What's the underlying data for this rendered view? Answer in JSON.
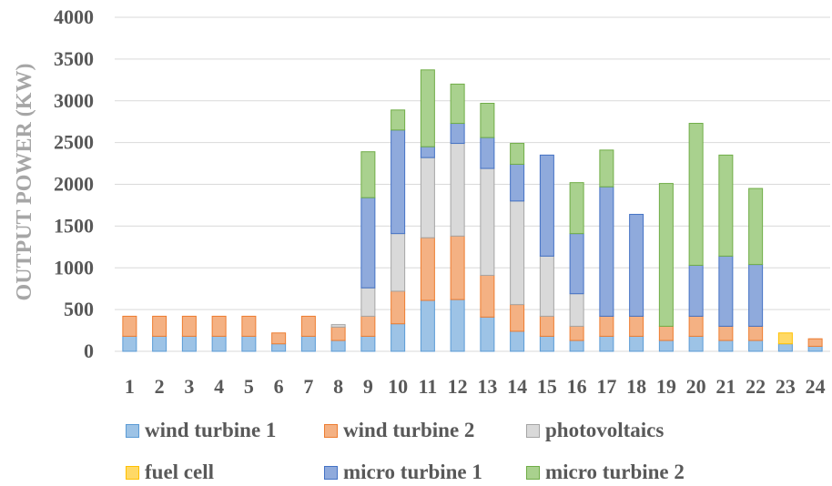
{
  "chart_data": {
    "type": "bar",
    "stacked": true,
    "title": "",
    "xlabel": "",
    "ylabel": "OUTPUT POWER (KW)",
    "ylim": [
      0,
      4000
    ],
    "yticks": [
      "0",
      "500",
      "1000",
      "1500",
      "2000",
      "2500",
      "3000",
      "3500",
      "4000"
    ],
    "grid": true,
    "legend_position": "bottom",
    "categories": [
      "1",
      "2",
      "3",
      "4",
      "5",
      "6",
      "7",
      "8",
      "9",
      "10",
      "11",
      "12",
      "13",
      "14",
      "15",
      "16",
      "17",
      "18",
      "19",
      "20",
      "21",
      "22",
      "23",
      "24"
    ],
    "series": [
      {
        "name": "wind turbine 1",
        "color": "#9dc3e6",
        "edge": "#5b9bd5",
        "values": [
          180,
          180,
          180,
          180,
          180,
          90,
          180,
          130,
          180,
          330,
          610,
          620,
          410,
          240,
          180,
          130,
          180,
          180,
          130,
          180,
          130,
          130,
          90,
          60
        ]
      },
      {
        "name": "wind turbine 2",
        "color": "#f4b183",
        "edge": "#ed7d31",
        "values": [
          240,
          240,
          240,
          240,
          240,
          130,
          240,
          160,
          240,
          390,
          750,
          760,
          500,
          320,
          240,
          170,
          240,
          240,
          170,
          240,
          170,
          170,
          0,
          90
        ]
      },
      {
        "name": "photovoltaics",
        "color": "#d9d9d9",
        "edge": "#a5a5a5",
        "values": [
          0,
          0,
          0,
          0,
          0,
          0,
          0,
          30,
          340,
          690,
          960,
          1110,
          1280,
          1240,
          720,
          390,
          0,
          0,
          0,
          0,
          0,
          0,
          0,
          0
        ]
      },
      {
        "name": "fuel cell",
        "color": "#ffd966",
        "edge": "#ffc000",
        "values": [
          0,
          0,
          0,
          0,
          0,
          0,
          0,
          0,
          0,
          0,
          0,
          0,
          0,
          0,
          0,
          0,
          0,
          0,
          0,
          0,
          0,
          0,
          130,
          0
        ]
      },
      {
        "name": "micro turbine 1",
        "color": "#8faadc",
        "edge": "#4472c4",
        "values": [
          0,
          0,
          0,
          0,
          0,
          0,
          0,
          0,
          1080,
          1240,
          130,
          240,
          370,
          440,
          1210,
          720,
          1550,
          1220,
          0,
          610,
          840,
          740,
          0,
          0
        ]
      },
      {
        "name": "micro turbine 2",
        "color": "#a9d18e",
        "edge": "#70ad47",
        "values": [
          0,
          0,
          0,
          0,
          0,
          0,
          0,
          0,
          550,
          240,
          920,
          470,
          410,
          250,
          0,
          610,
          440,
          0,
          1710,
          1700,
          1210,
          910,
          0,
          0
        ]
      }
    ],
    "legend_rows": [
      [
        "wind turbine 1",
        "wind turbine 2",
        "photovoltaics"
      ],
      [
        "fuel cell",
        "micro turbine 1",
        "micro turbine 2"
      ]
    ]
  }
}
